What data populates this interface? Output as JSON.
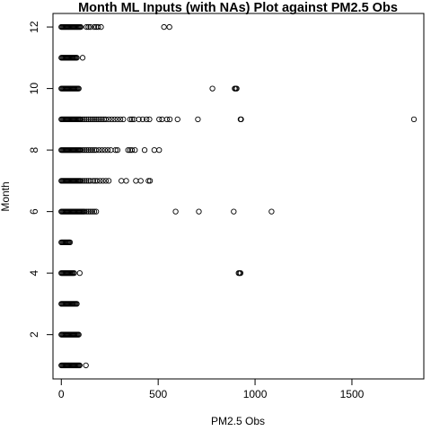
{
  "chart_data": {
    "type": "scatter",
    "title": "Month ML Inputs (with NAs) Plot against PM2.5 Obs",
    "xlabel": "PM2.5 Obs",
    "ylabel": "Month",
    "xlim": [
      -43,
      1871
    ],
    "ylim": [
      0.56,
      12.44
    ],
    "x_ticks": [
      0,
      500,
      1000,
      1500
    ],
    "y_ticks": [
      2,
      4,
      6,
      8,
      10,
      12
    ],
    "x_tick_labels": [
      "0",
      "500",
      "1000",
      "1500"
    ],
    "y_tick_labels": [
      "2",
      "4",
      "6",
      "8",
      "10",
      "12"
    ],
    "grid": false,
    "marker": "open-circle",
    "series": [
      {
        "points": [
          [
            0,
            1
          ],
          [
            5,
            1
          ],
          [
            10,
            1
          ],
          [
            15,
            1
          ],
          [
            20,
            1
          ],
          [
            25,
            1
          ],
          [
            30,
            1
          ],
          [
            35,
            1
          ],
          [
            40,
            1
          ],
          [
            45,
            1
          ],
          [
            50,
            1
          ],
          [
            55,
            1
          ],
          [
            60,
            1
          ],
          [
            65,
            1
          ],
          [
            70,
            1
          ],
          [
            75,
            1
          ],
          [
            80,
            1
          ],
          [
            85,
            1
          ],
          [
            90,
            1
          ],
          [
            95,
            1
          ],
          [
            127,
            1
          ],
          [
            0,
            2
          ],
          [
            5,
            2
          ],
          [
            10,
            2
          ],
          [
            15,
            2
          ],
          [
            20,
            2
          ],
          [
            25,
            2
          ],
          [
            30,
            2
          ],
          [
            35,
            2
          ],
          [
            40,
            2
          ],
          [
            45,
            2
          ],
          [
            50,
            2
          ],
          [
            55,
            2
          ],
          [
            60,
            2
          ],
          [
            65,
            2
          ],
          [
            70,
            2
          ],
          [
            75,
            2
          ],
          [
            80,
            2
          ],
          [
            85,
            2
          ],
          [
            90,
            2
          ],
          [
            0,
            3
          ],
          [
            5,
            3
          ],
          [
            10,
            3
          ],
          [
            15,
            3
          ],
          [
            20,
            3
          ],
          [
            25,
            3
          ],
          [
            30,
            3
          ],
          [
            35,
            3
          ],
          [
            40,
            3
          ],
          [
            45,
            3
          ],
          [
            50,
            3
          ],
          [
            55,
            3
          ],
          [
            60,
            3
          ],
          [
            65,
            3
          ],
          [
            70,
            3
          ],
          [
            75,
            3
          ],
          [
            80,
            3
          ],
          [
            0,
            4
          ],
          [
            5,
            4
          ],
          [
            10,
            4
          ],
          [
            15,
            4
          ],
          [
            20,
            4
          ],
          [
            25,
            4
          ],
          [
            30,
            4
          ],
          [
            35,
            4
          ],
          [
            40,
            4
          ],
          [
            45,
            4
          ],
          [
            50,
            4
          ],
          [
            55,
            4
          ],
          [
            60,
            4
          ],
          [
            66,
            4
          ],
          [
            95,
            4
          ],
          [
            915,
            4
          ],
          [
            920,
            4
          ],
          [
            925,
            4
          ],
          [
            0,
            5
          ],
          [
            5,
            5
          ],
          [
            10,
            5
          ],
          [
            15,
            5
          ],
          [
            20,
            5
          ],
          [
            25,
            5
          ],
          [
            30,
            5
          ],
          [
            35,
            5
          ],
          [
            40,
            5
          ],
          [
            45,
            5
          ],
          [
            0,
            6
          ],
          [
            5,
            6
          ],
          [
            10,
            6
          ],
          [
            15,
            6
          ],
          [
            20,
            6
          ],
          [
            25,
            6
          ],
          [
            30,
            6
          ],
          [
            35,
            6
          ],
          [
            40,
            6
          ],
          [
            45,
            6
          ],
          [
            50,
            6
          ],
          [
            55,
            6
          ],
          [
            60,
            6
          ],
          [
            65,
            6
          ],
          [
            70,
            6
          ],
          [
            75,
            6
          ],
          [
            80,
            6
          ],
          [
            85,
            6
          ],
          [
            90,
            6
          ],
          [
            95,
            6
          ],
          [
            100,
            6
          ],
          [
            105,
            6
          ],
          [
            110,
            6
          ],
          [
            115,
            6
          ],
          [
            120,
            6
          ],
          [
            130,
            6
          ],
          [
            140,
            6
          ],
          [
            150,
            6
          ],
          [
            160,
            6
          ],
          [
            170,
            6
          ],
          [
            180,
            6
          ],
          [
            590,
            6
          ],
          [
            710,
            6
          ],
          [
            890,
            6
          ],
          [
            1085,
            6
          ],
          [
            0,
            7
          ],
          [
            5,
            7
          ],
          [
            10,
            7
          ],
          [
            15,
            7
          ],
          [
            20,
            7
          ],
          [
            25,
            7
          ],
          [
            30,
            7
          ],
          [
            35,
            7
          ],
          [
            40,
            7
          ],
          [
            45,
            7
          ],
          [
            50,
            7
          ],
          [
            55,
            7
          ],
          [
            60,
            7
          ],
          [
            65,
            7
          ],
          [
            70,
            7
          ],
          [
            75,
            7
          ],
          [
            80,
            7
          ],
          [
            85,
            7
          ],
          [
            90,
            7
          ],
          [
            95,
            7
          ],
          [
            100,
            7
          ],
          [
            110,
            7
          ],
          [
            120,
            7
          ],
          [
            130,
            7
          ],
          [
            140,
            7
          ],
          [
            150,
            7
          ],
          [
            165,
            7
          ],
          [
            175,
            7
          ],
          [
            185,
            7
          ],
          [
            200,
            7
          ],
          [
            215,
            7
          ],
          [
            230,
            7
          ],
          [
            245,
            7
          ],
          [
            310,
            7
          ],
          [
            335,
            7
          ],
          [
            385,
            7
          ],
          [
            410,
            7
          ],
          [
            450,
            7
          ],
          [
            458,
            7
          ],
          [
            0,
            8
          ],
          [
            5,
            8
          ],
          [
            10,
            8
          ],
          [
            15,
            8
          ],
          [
            20,
            8
          ],
          [
            25,
            8
          ],
          [
            30,
            8
          ],
          [
            35,
            8
          ],
          [
            40,
            8
          ],
          [
            45,
            8
          ],
          [
            50,
            8
          ],
          [
            55,
            8
          ],
          [
            60,
            8
          ],
          [
            65,
            8
          ],
          [
            70,
            8
          ],
          [
            75,
            8
          ],
          [
            80,
            8
          ],
          [
            85,
            8
          ],
          [
            90,
            8
          ],
          [
            95,
            8
          ],
          [
            100,
            8
          ],
          [
            110,
            8
          ],
          [
            120,
            8
          ],
          [
            130,
            8
          ],
          [
            140,
            8
          ],
          [
            150,
            8
          ],
          [
            160,
            8
          ],
          [
            170,
            8
          ],
          [
            180,
            8
          ],
          [
            195,
            8
          ],
          [
            210,
            8
          ],
          [
            225,
            8
          ],
          [
            240,
            8
          ],
          [
            255,
            8
          ],
          [
            280,
            8
          ],
          [
            290,
            8
          ],
          [
            345,
            8
          ],
          [
            355,
            8
          ],
          [
            365,
            8
          ],
          [
            380,
            8
          ],
          [
            430,
            8
          ],
          [
            480,
            8
          ],
          [
            505,
            8
          ],
          [
            0,
            9
          ],
          [
            5,
            9
          ],
          [
            10,
            9
          ],
          [
            15,
            9
          ],
          [
            20,
            9
          ],
          [
            25,
            9
          ],
          [
            30,
            9
          ],
          [
            35,
            9
          ],
          [
            40,
            9
          ],
          [
            45,
            9
          ],
          [
            50,
            9
          ],
          [
            55,
            9
          ],
          [
            60,
            9
          ],
          [
            65,
            9
          ],
          [
            70,
            9
          ],
          [
            75,
            9
          ],
          [
            80,
            9
          ],
          [
            85,
            9
          ],
          [
            90,
            9
          ],
          [
            95,
            9
          ],
          [
            100,
            9
          ],
          [
            110,
            9
          ],
          [
            120,
            9
          ],
          [
            130,
            9
          ],
          [
            140,
            9
          ],
          [
            150,
            9
          ],
          [
            160,
            9
          ],
          [
            170,
            9
          ],
          [
            180,
            9
          ],
          [
            190,
            9
          ],
          [
            200,
            9
          ],
          [
            210,
            9
          ],
          [
            220,
            9
          ],
          [
            230,
            9
          ],
          [
            245,
            9
          ],
          [
            260,
            9
          ],
          [
            275,
            9
          ],
          [
            290,
            9
          ],
          [
            305,
            9
          ],
          [
            320,
            9
          ],
          [
            355,
            9
          ],
          [
            365,
            9
          ],
          [
            375,
            9
          ],
          [
            400,
            9
          ],
          [
            420,
            9
          ],
          [
            440,
            9
          ],
          [
            455,
            9
          ],
          [
            505,
            9
          ],
          [
            520,
            9
          ],
          [
            545,
            9
          ],
          [
            560,
            9
          ],
          [
            600,
            9
          ],
          [
            705,
            9
          ],
          [
            925,
            9
          ],
          [
            928,
            9
          ],
          [
            1820,
            9
          ],
          [
            0,
            10
          ],
          [
            5,
            10
          ],
          [
            10,
            10
          ],
          [
            15,
            10
          ],
          [
            20,
            10
          ],
          [
            25,
            10
          ],
          [
            30,
            10
          ],
          [
            35,
            10
          ],
          [
            40,
            10
          ],
          [
            45,
            10
          ],
          [
            50,
            10
          ],
          [
            55,
            10
          ],
          [
            60,
            10
          ],
          [
            65,
            10
          ],
          [
            70,
            10
          ],
          [
            75,
            10
          ],
          [
            80,
            10
          ],
          [
            85,
            10
          ],
          [
            90,
            10
          ],
          [
            780,
            10
          ],
          [
            895,
            10
          ],
          [
            900,
            10
          ],
          [
            905,
            10
          ],
          [
            0,
            11
          ],
          [
            5,
            11
          ],
          [
            10,
            11
          ],
          [
            15,
            11
          ],
          [
            20,
            11
          ],
          [
            25,
            11
          ],
          [
            30,
            11
          ],
          [
            35,
            11
          ],
          [
            40,
            11
          ],
          [
            45,
            11
          ],
          [
            50,
            11
          ],
          [
            55,
            11
          ],
          [
            60,
            11
          ],
          [
            65,
            11
          ],
          [
            70,
            11
          ],
          [
            75,
            11
          ],
          [
            80,
            11
          ],
          [
            110,
            11
          ],
          [
            0,
            12
          ],
          [
            5,
            12
          ],
          [
            10,
            12
          ],
          [
            15,
            12
          ],
          [
            20,
            12
          ],
          [
            25,
            12
          ],
          [
            30,
            12
          ],
          [
            35,
            12
          ],
          [
            40,
            12
          ],
          [
            45,
            12
          ],
          [
            50,
            12
          ],
          [
            55,
            12
          ],
          [
            60,
            12
          ],
          [
            65,
            12
          ],
          [
            70,
            12
          ],
          [
            75,
            12
          ],
          [
            80,
            12
          ],
          [
            85,
            12
          ],
          [
            90,
            12
          ],
          [
            95,
            12
          ],
          [
            100,
            12
          ],
          [
            130,
            12
          ],
          [
            140,
            12
          ],
          [
            150,
            12
          ],
          [
            170,
            12
          ],
          [
            180,
            12
          ],
          [
            190,
            12
          ],
          [
            205,
            12
          ],
          [
            530,
            12
          ],
          [
            558,
            12
          ]
        ]
      }
    ]
  }
}
